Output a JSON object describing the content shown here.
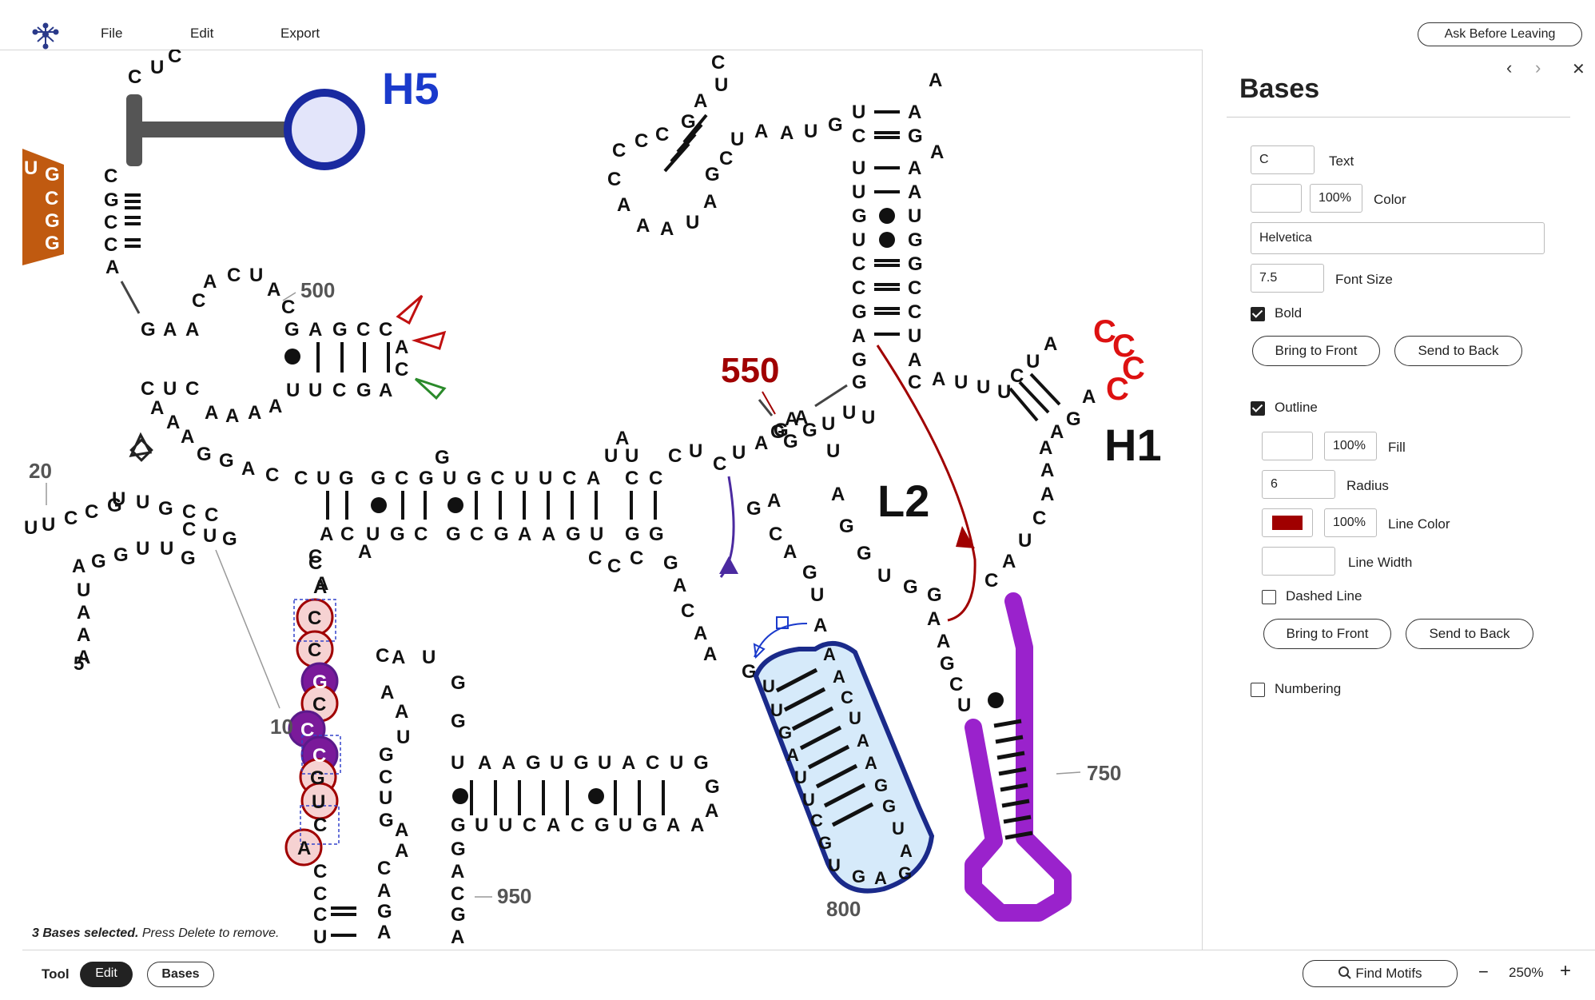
{
  "menu": {
    "file": "File",
    "edit": "Edit",
    "export": "Export"
  },
  "header": {
    "ask_before_leaving": "Ask Before Leaving"
  },
  "panel": {
    "title": "Bases",
    "nav_back": "‹",
    "nav_forward": "›",
    "close": "✕",
    "text_value": "C",
    "text_label": "Text",
    "color_opacity": "100%",
    "color_label": "Color",
    "font_family_value": "Helvetica",
    "font_size_value": "7.5",
    "font_size_label": "Font Size",
    "bold_label": "Bold",
    "bold_checked": true,
    "bring_to_front_1": "Bring to Front",
    "send_to_back_1": "Send to Back",
    "outline_label": "Outline",
    "outline_checked": true,
    "fill_opacity": "100%",
    "fill_label": "Fill",
    "radius_value": "6",
    "radius_label": "Radius",
    "line_color": "#a00000",
    "line_color_opacity": "100%",
    "line_color_label": "Line Color",
    "line_width_label": "Line Width",
    "dashed_line_label": "Dashed Line",
    "dashed_checked": false,
    "bring_to_front_2": "Bring to Front",
    "send_to_back_2": "Send to Back",
    "numbering_label": "Numbering",
    "numbering_checked": false
  },
  "status": {
    "selected": "3 Bases selected.",
    "hint": "Press Delete to remove."
  },
  "bottom": {
    "tool_label": "Tool",
    "edit_tab": "Edit",
    "bases_tab": "Bases",
    "find_motifs": "Find Motifs",
    "zoom_out": "−",
    "zoom_level": "250%",
    "zoom_in": "+"
  },
  "drawing": {
    "labels": {
      "h5": "H5",
      "h1": "H1",
      "l2": "L2",
      "n550": "550"
    },
    "numbers": {
      "n500": "500",
      "n20": "20",
      "n10": "10",
      "n950": "950",
      "n800": "800",
      "n750": "750",
      "five_prime": "5'"
    }
  }
}
